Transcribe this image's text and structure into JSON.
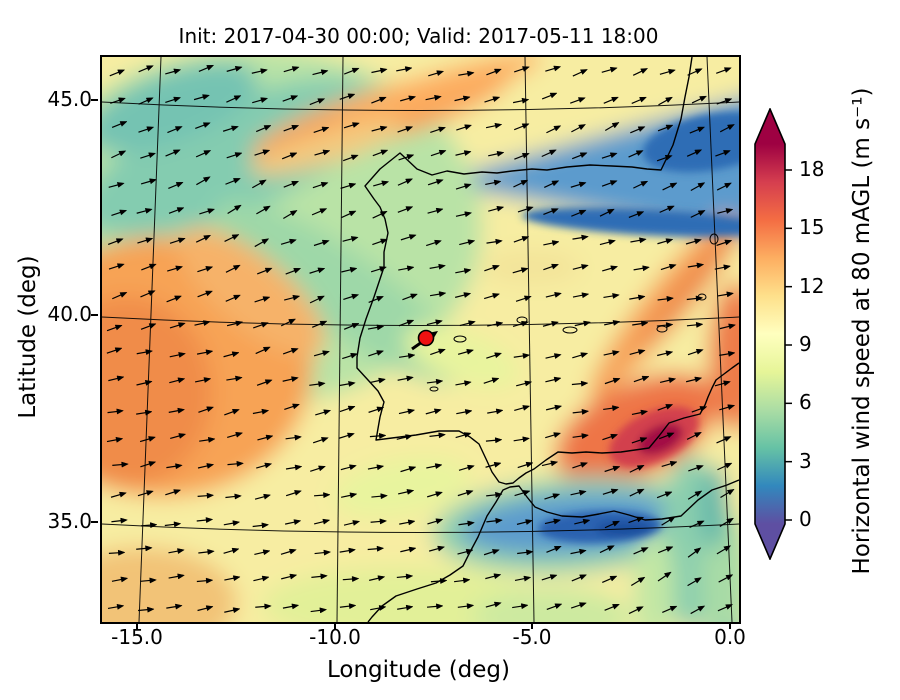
{
  "figure": {
    "title": "Init: 2017-04-30 00:00; Valid: 2017-05-11 18:00",
    "xlabel": "Longitude (deg)",
    "ylabel": "Latitude (deg)",
    "x_ticks": [
      "-15.0",
      "-10.0",
      "-5.0",
      "0.0"
    ],
    "y_ticks": [
      "45.0",
      "40.0",
      "35.0"
    ],
    "colorbar": {
      "label": "Horizontal wind speed at 80 mAGL (m s⁻¹)",
      "ticks": [
        "18",
        "15",
        "12",
        "9",
        "6",
        "3",
        "0"
      ]
    }
  },
  "chart_data": {
    "type": "heatmap",
    "title": "Init: 2017-04-30 00:00; Valid: 2017-05-11 18:00",
    "xlabel": "Longitude (deg)",
    "ylabel": "Latitude (deg)",
    "x_range": [
      -15.9,
      0.2
    ],
    "y_range": [
      32.4,
      46.0
    ],
    "x_ticks": [
      -15.0,
      -10.0,
      -5.0,
      0.0
    ],
    "y_ticks": [
      45.0,
      40.0,
      35.0
    ],
    "variable": "Horizontal wind speed at 80 mAGL (m s⁻¹)",
    "colorbar_ticks": [
      0,
      3,
      6,
      9,
      12,
      15,
      18
    ],
    "colorbar_extend": "both",
    "colormap": "Spectral_r",
    "colormap_stops": [
      "#5e4fa2",
      "#3288bd",
      "#66c2a5",
      "#abdda4",
      "#e6f598",
      "#ffffbf",
      "#fee08b",
      "#fdae61",
      "#f46d43",
      "#d53e4f",
      "#9e0142"
    ],
    "overlays": [
      "quiver wind vectors (black arrows)",
      "coastlines (Iberian Peninsula and NW Africa)",
      "lat-lon graticule",
      "red site marker"
    ],
    "marker": {
      "lon": -7.9,
      "lat": 39.5,
      "color": "#ee1111"
    },
    "regions": [
      {
        "area": "Atlantic NW of Galicia",
        "approx_speed_ms": 5
      },
      {
        "area": "Bay of Biscay / SW France wedge",
        "approx_speed_ms": 2
      },
      {
        "area": "Atlantic west of Portugal",
        "approx_speed_ms": 13
      },
      {
        "area": "central Iberia",
        "approx_speed_ms": 9
      },
      {
        "area": "diagonal band N of Iberia (top-center)",
        "approx_speed_ms": 13
      },
      {
        "area": "SE Spain (Murcia/Almeria)",
        "approx_speed_ms": 17
      },
      {
        "area": "Alboran Sea",
        "approx_speed_ms": 3
      },
      {
        "area": "NW Algeria coastal strip",
        "approx_speed_ms": 6
      },
      {
        "area": "Valencia coastal band",
        "approx_speed_ms": 14
      }
    ],
    "wind_flow": "predominantly westerly to southwesterly; arrows point E to NE",
    "quiver": {
      "nx": 22,
      "ny": 20,
      "color": "#000000"
    }
  }
}
